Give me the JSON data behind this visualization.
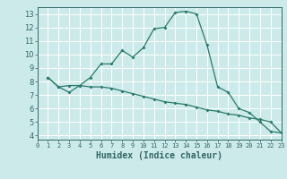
{
  "title": "",
  "xlabel": "Humidex (Indice chaleur)",
  "bg_color": "#cceaea",
  "grid_color": "#ffffff",
  "line_color": "#2a7a6a",
  "line1_x": [
    1,
    2,
    3,
    4,
    5,
    6,
    7,
    8,
    9,
    10,
    11,
    12,
    13,
    14,
    15,
    16,
    17,
    18,
    19,
    20,
    21,
    22,
    23
  ],
  "line1_y": [
    8.3,
    7.6,
    7.2,
    7.7,
    7.6,
    7.6,
    7.5,
    7.3,
    7.1,
    6.9,
    6.7,
    6.5,
    6.4,
    6.3,
    6.1,
    5.9,
    5.8,
    5.6,
    5.5,
    5.3,
    5.2,
    5.0,
    4.2
  ],
  "line2_x": [
    1,
    2,
    3,
    4,
    5,
    6,
    7,
    8,
    9,
    10,
    11,
    12,
    13,
    14,
    15,
    16,
    17,
    18,
    19,
    20,
    21,
    22,
    23
  ],
  "line2_y": [
    8.3,
    7.6,
    7.7,
    7.7,
    8.3,
    9.3,
    9.3,
    10.3,
    9.8,
    10.5,
    11.9,
    12.0,
    13.1,
    13.2,
    13.0,
    10.7,
    7.6,
    7.2,
    6.0,
    5.7,
    5.0,
    4.3,
    4.2
  ],
  "xlim": [
    0,
    23
  ],
  "ylim": [
    3.7,
    13.5
  ],
  "yticks": [
    4,
    5,
    6,
    7,
    8,
    9,
    10,
    11,
    12,
    13
  ],
  "xticks": [
    0,
    1,
    2,
    3,
    4,
    5,
    6,
    7,
    8,
    9,
    10,
    11,
    12,
    13,
    14,
    15,
    16,
    17,
    18,
    19,
    20,
    21,
    22,
    23
  ]
}
